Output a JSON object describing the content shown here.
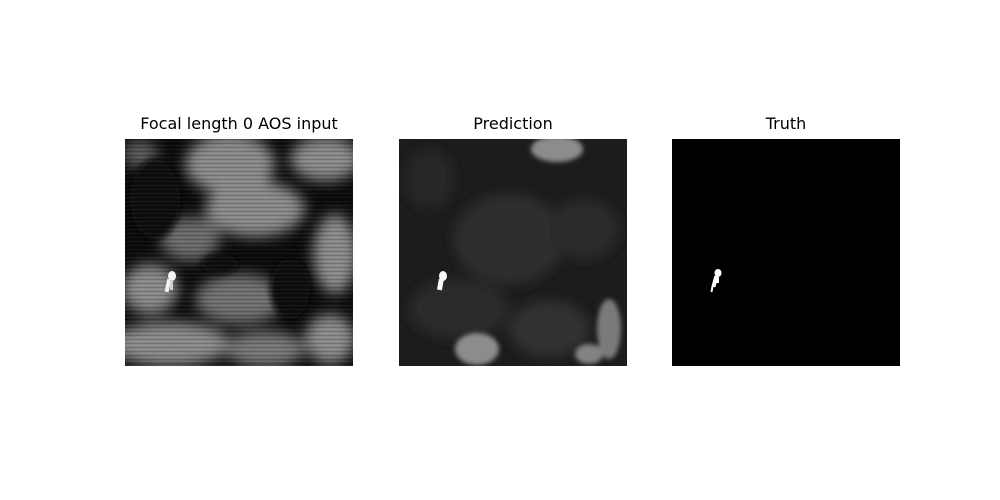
{
  "figure": {
    "panels": [
      {
        "title": "Focal length 0 AOS input",
        "image": "aerial-thermal-integral-image",
        "background": "#0a0a0a"
      },
      {
        "title": "Prediction",
        "image": "predicted-integral-image",
        "background": "#1c1c1c"
      },
      {
        "title": "Truth",
        "image": "ground-truth-person-mask",
        "background": "#000000"
      }
    ]
  }
}
